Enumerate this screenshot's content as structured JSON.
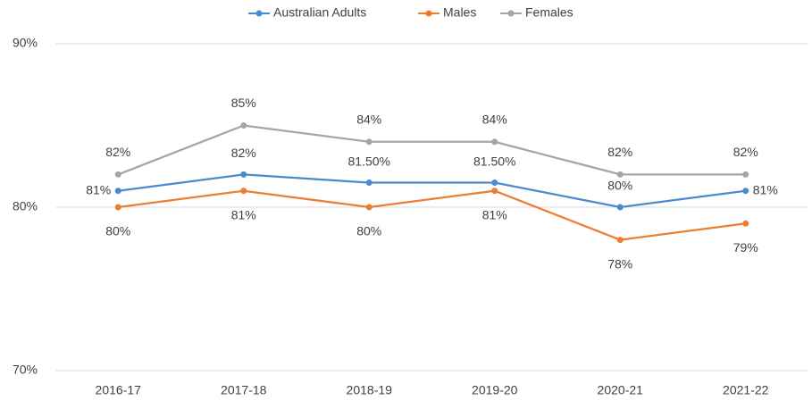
{
  "chart_data": {
    "type": "line",
    "categories": [
      "2016-17",
      "2017-18",
      "2018-19",
      "2019-20",
      "2020-21",
      "2021-22"
    ],
    "series": [
      {
        "name": "Australian Adults",
        "color": "#4a8bd0",
        "values": [
          81,
          82,
          81.5,
          81.5,
          80,
          81
        ],
        "value_labels": [
          "81%",
          "82%",
          "81.50%",
          "81.50%",
          "80%",
          "81%"
        ]
      },
      {
        "name": "Males",
        "color": "#ed7d31",
        "values": [
          80,
          81,
          80,
          81,
          78,
          79
        ],
        "value_labels": [
          "80%",
          "81%",
          "80%",
          "81%",
          "78%",
          "79%"
        ]
      },
      {
        "name": "Females",
        "color": "#a5a5a5",
        "values": [
          82,
          85,
          84,
          84,
          82,
          82
        ],
        "value_labels": [
          "82%",
          "85%",
          "84%",
          "84%",
          "82%",
          "82%"
        ]
      }
    ],
    "ylim": [
      70,
      90
    ],
    "yticks": [
      {
        "value": 70,
        "label": "70%"
      },
      {
        "value": 80,
        "label": "80%"
      },
      {
        "value": 90,
        "label": "90%"
      }
    ],
    "grid": true,
    "legend": "top"
  }
}
